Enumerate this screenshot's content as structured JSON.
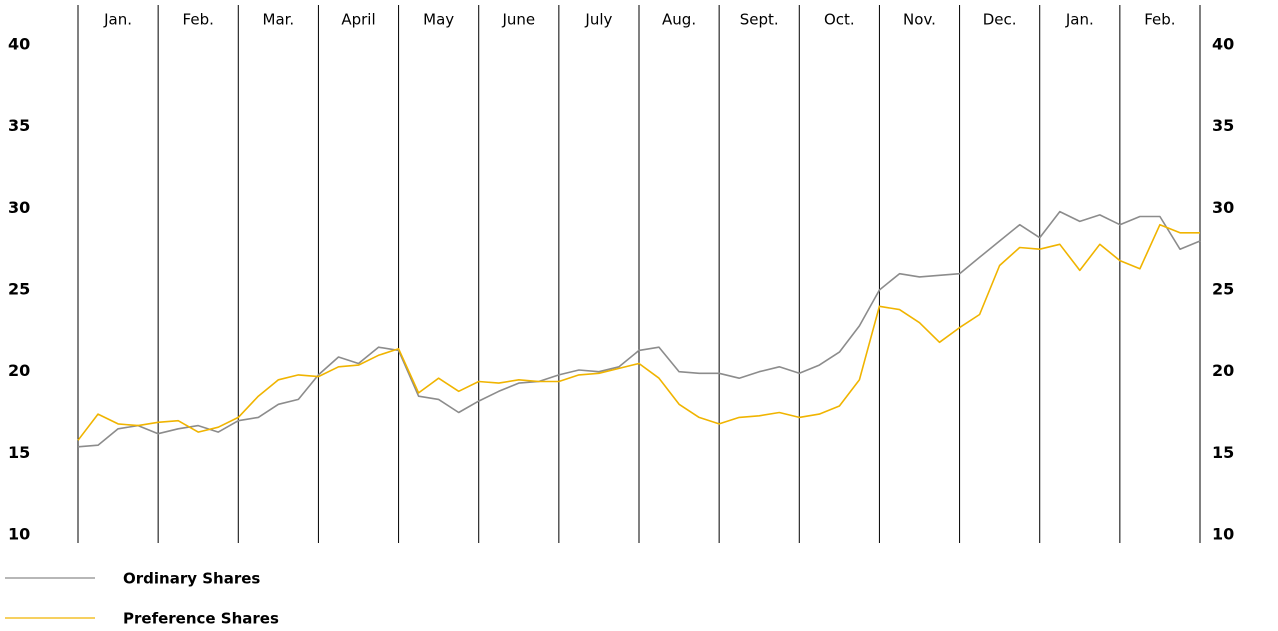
{
  "chart_data": {
    "type": "line",
    "categories": [
      "Jan.",
      "Feb.",
      "Mar.",
      "April",
      "May",
      "June",
      "July",
      "Aug.",
      "Sept.",
      "Oct.",
      "Nov.",
      "Dec.",
      "Jan.",
      "Feb."
    ],
    "x": [
      0,
      0.25,
      0.5,
      0.75,
      1,
      1.25,
      1.5,
      1.75,
      2,
      2.25,
      2.5,
      2.75,
      3,
      3.25,
      3.5,
      3.75,
      4,
      4.25,
      4.5,
      4.75,
      5,
      5.25,
      5.5,
      5.75,
      6,
      6.25,
      6.5,
      6.75,
      7,
      7.25,
      7.5,
      7.75,
      8,
      8.25,
      8.5,
      8.75,
      9,
      9.25,
      9.5,
      9.75,
      10,
      10.25,
      10.5,
      10.75,
      11,
      11.25,
      11.5,
      11.75,
      12,
      12.25,
      12.5,
      12.75,
      13,
      13.25,
      13.5,
      13.75,
      14
    ],
    "xlim": [
      0,
      14
    ],
    "xticks": [
      0,
      1,
      2,
      3,
      4,
      5,
      6,
      7,
      8,
      9,
      10,
      11,
      12,
      13,
      14
    ],
    "ylim": [
      10,
      40
    ],
    "yticks": [
      10,
      15,
      20,
      25,
      30,
      35,
      40
    ],
    "series": [
      {
        "name": "Ordinary Shares",
        "color": "#8c8c8c",
        "values": [
          15.4,
          15.5,
          16.5,
          16.7,
          16.2,
          16.5,
          16.7,
          16.3,
          17.0,
          17.2,
          18.0,
          18.3,
          19.8,
          20.9,
          20.5,
          21.5,
          21.3,
          18.5,
          18.3,
          17.5,
          18.2,
          18.8,
          19.3,
          19.4,
          19.8,
          20.1,
          20.0,
          20.3,
          21.3,
          21.5,
          20.0,
          19.9,
          19.9,
          19.6,
          20.0,
          20.3,
          19.9,
          20.4,
          21.2,
          22.8,
          25.0,
          26.0,
          25.8,
          25.9,
          26.0,
          27.0,
          28.0,
          29.0,
          28.2,
          29.8,
          29.2,
          29.6,
          29.0,
          29.5,
          29.5,
          27.5,
          28.0
        ]
      },
      {
        "name": "Preference Shares",
        "color": "#f0b400",
        "values": [
          15.8,
          17.4,
          16.8,
          16.7,
          16.9,
          17.0,
          16.3,
          16.6,
          17.2,
          18.5,
          19.5,
          19.8,
          19.7,
          20.3,
          20.4,
          21.0,
          21.4,
          18.7,
          19.6,
          18.8,
          19.4,
          19.3,
          19.5,
          19.4,
          19.4,
          19.8,
          19.9,
          20.2,
          20.5,
          19.6,
          18.0,
          17.2,
          16.8,
          17.2,
          17.3,
          17.5,
          17.2,
          17.4,
          17.9,
          19.5,
          24.0,
          23.8,
          23.0,
          21.8,
          22.7,
          23.5,
          26.5,
          27.6,
          27.5,
          27.8,
          26.2,
          27.8,
          26.8,
          26.3,
          29.0,
          28.5,
          28.5
        ]
      }
    ]
  }
}
